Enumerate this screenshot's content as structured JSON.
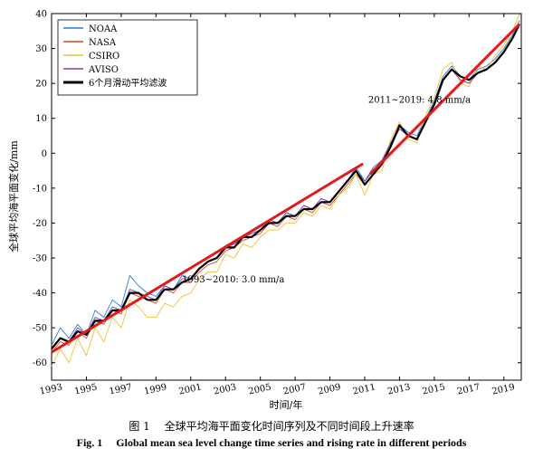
{
  "chart_data": {
    "type": "line",
    "title": "",
    "xlabel": "时间/年",
    "ylabel": "全球平均海平面变化/mm",
    "xlim": [
      1993,
      2020
    ],
    "ylim": [
      -65,
      40
    ],
    "x_ticks": [
      "1993",
      "1995",
      "1997",
      "1999",
      "2001",
      "2003",
      "2005",
      "2007",
      "2009",
      "2011",
      "2013",
      "2015",
      "2017",
      "2019"
    ],
    "y_ticks": [
      "-60",
      "-50",
      "-40",
      "-30",
      "-20",
      "-10",
      "0",
      "10",
      "20",
      "30",
      "40"
    ],
    "legend_position": "top-left",
    "grid": false,
    "series": [
      {
        "name": "NOAA",
        "color": "#2e7bd6",
        "x": [
          1993.0,
          1993.5,
          1994.0,
          1994.5,
          1995.0,
          1995.5,
          1996.0,
          1996.5,
          1997.0,
          1997.5,
          1998.0,
          1998.5,
          1999.0,
          1999.5,
          2000.0,
          2000.5,
          2001.0,
          2001.5,
          2002.0,
          2002.5,
          2003.0,
          2003.5,
          2004.0,
          2004.5,
          2005.0,
          2005.5,
          2006.0,
          2006.5,
          2007.0,
          2007.5,
          2008.0,
          2008.5,
          2009.0,
          2009.5,
          2010.0,
          2010.5,
          2011.0,
          2011.5,
          2012.0,
          2012.5,
          2013.0,
          2013.5,
          2014.0,
          2014.5,
          2015.0,
          2015.5,
          2016.0,
          2016.5,
          2017.0,
          2017.5,
          2018.0,
          2018.5,
          2019.0,
          2019.5,
          2019.9
        ],
        "y": [
          -55,
          -50,
          -53,
          -49,
          -52,
          -45,
          -47,
          -42,
          -44,
          -35,
          -38,
          -40,
          -41,
          -38,
          -39,
          -35,
          -36,
          -33,
          -31,
          -30,
          -27,
          -26,
          -24,
          -23,
          -22,
          -19,
          -20,
          -17,
          -18,
          -15,
          -16,
          -13,
          -14,
          -11,
          -8,
          -4,
          -8,
          -4,
          -2,
          3,
          8,
          6,
          5,
          10,
          15,
          22,
          25,
          22,
          21,
          24,
          25,
          27,
          30,
          34,
          38
        ]
      },
      {
        "name": "NASA",
        "color": "#d9432b",
        "x": [
          1993.0,
          1993.5,
          1994.0,
          1994.5,
          1995.0,
          1995.5,
          1996.0,
          1996.5,
          1997.0,
          1997.5,
          1998.0,
          1998.5,
          1999.0,
          1999.5,
          2000.0,
          2000.5,
          2001.0,
          2001.5,
          2002.0,
          2002.5,
          2003.0,
          2003.5,
          2004.0,
          2004.5,
          2005.0,
          2005.5,
          2006.0,
          2006.5,
          2007.0,
          2007.5,
          2008.0,
          2008.5,
          2009.0,
          2009.5,
          2010.0,
          2010.5,
          2011.0,
          2011.5,
          2012.0,
          2012.5,
          2013.0,
          2013.5,
          2014.0,
          2014.5,
          2015.0,
          2015.5,
          2016.0,
          2016.5,
          2017.0,
          2017.5,
          2018.0,
          2018.5,
          2019.0,
          2019.5,
          2019.9
        ],
        "y": [
          -57,
          -54,
          -55,
          -51,
          -53,
          -48,
          -49,
          -45,
          -46,
          -40,
          -41,
          -42,
          -43,
          -39,
          -40,
          -37,
          -37,
          -34,
          -32,
          -31,
          -28,
          -27,
          -25,
          -24,
          -23,
          -20,
          -21,
          -18,
          -19,
          -16,
          -17,
          -14,
          -15,
          -12,
          -9,
          -6,
          -9,
          -6,
          -3,
          2,
          7,
          5,
          4,
          9,
          14,
          21,
          24,
          21,
          20,
          23,
          24,
          26,
          29,
          33,
          37
        ]
      },
      {
        "name": "CSIRO",
        "color": "#f2c230",
        "x": [
          1993.0,
          1993.5,
          1994.0,
          1994.5,
          1995.0,
          1995.5,
          1996.0,
          1996.5,
          1997.0,
          1997.5,
          1998.0,
          1998.5,
          1999.0,
          1999.5,
          2000.0,
          2000.5,
          2001.0,
          2001.5,
          2002.0,
          2002.5,
          2003.0,
          2003.5,
          2004.0,
          2004.5,
          2005.0,
          2005.5,
          2006.0,
          2006.5,
          2007.0,
          2007.5,
          2008.0,
          2008.5,
          2009.0,
          2009.5,
          2010.0,
          2010.5,
          2011.0,
          2011.5,
          2012.0,
          2012.5,
          2013.0,
          2013.5,
          2014.0,
          2014.5,
          2015.0,
          2015.5,
          2016.0,
          2016.5,
          2017.0,
          2017.5,
          2018.0,
          2018.5,
          2019.0,
          2019.5,
          2019.9
        ],
        "y": [
          -61,
          -56,
          -60,
          -53,
          -58,
          -50,
          -54,
          -47,
          -50,
          -42,
          -44,
          -47,
          -47,
          -43,
          -44,
          -41,
          -40,
          -36,
          -34,
          -34,
          -29,
          -30,
          -26,
          -27,
          -24,
          -22,
          -22,
          -20,
          -20,
          -17,
          -18,
          -15,
          -16,
          -12,
          -10,
          -6,
          -12,
          -6,
          -5,
          4,
          9,
          4,
          3,
          11,
          16,
          24,
          26,
          20,
          19,
          25,
          24,
          28,
          31,
          35,
          40
        ]
      },
      {
        "name": "AVISO",
        "color": "#7b3fa6",
        "x": [
          1993.0,
          1993.5,
          1994.0,
          1994.5,
          1995.0,
          1995.5,
          1996.0,
          1996.5,
          1997.0,
          1997.5,
          1998.0,
          1998.5,
          1999.0,
          1999.5,
          2000.0,
          2000.5,
          2001.0,
          2001.5,
          2002.0,
          2002.5,
          2003.0,
          2003.5,
          2004.0,
          2004.5,
          2005.0,
          2005.5,
          2006.0,
          2006.5,
          2007.0,
          2007.5,
          2008.0,
          2008.5,
          2009.0,
          2009.5,
          2010.0,
          2010.5,
          2011.0,
          2011.5,
          2012.0,
          2012.5,
          2013.0,
          2013.5,
          2014.0,
          2014.5,
          2015.0,
          2015.5,
          2016.0,
          2016.5,
          2017.0,
          2017.5,
          2018.0,
          2018.5,
          2019.0,
          2019.5,
          2019.9
        ],
        "y": [
          -56,
          -53,
          -54,
          -50,
          -52,
          -47,
          -48,
          -44,
          -45,
          -39,
          -40,
          -41,
          -42,
          -38,
          -39,
          -36,
          -36,
          -33,
          -31,
          -30,
          -27,
          -26,
          -24,
          -23,
          -22,
          -19,
          -20,
          -17,
          -18,
          -15,
          -16,
          -13,
          -14,
          -11,
          -8,
          -5,
          -8,
          -5,
          -2,
          3,
          7,
          5,
          4,
          9,
          14,
          21,
          24,
          21,
          20,
          23,
          24,
          26,
          29,
          33,
          37
        ]
      },
      {
        "name": "6个月滑动平均滤波",
        "color": "#000000",
        "bold": true,
        "x": [
          1993.0,
          1993.5,
          1994.0,
          1994.5,
          1995.0,
          1995.5,
          1996.0,
          1996.5,
          1997.0,
          1997.5,
          1998.0,
          1998.5,
          1999.0,
          1999.5,
          2000.0,
          2000.5,
          2001.0,
          2001.5,
          2002.0,
          2002.5,
          2003.0,
          2003.5,
          2004.0,
          2004.5,
          2005.0,
          2005.5,
          2006.0,
          2006.5,
          2007.0,
          2007.5,
          2008.0,
          2008.5,
          2009.0,
          2009.5,
          2010.0,
          2010.5,
          2011.0,
          2011.5,
          2012.0,
          2012.5,
          2013.0,
          2013.5,
          2014.0,
          2014.5,
          2015.0,
          2015.5,
          2016.0,
          2016.5,
          2017.0,
          2017.5,
          2018.0,
          2018.5,
          2019.0,
          2019.5,
          2019.9
        ],
        "y": [
          -56,
          -53,
          -54,
          -51,
          -52,
          -48,
          -48,
          -45,
          -45,
          -40,
          -40,
          -42,
          -42,
          -39,
          -39,
          -37,
          -36,
          -33,
          -31,
          -30,
          -27,
          -27,
          -24,
          -24,
          -22,
          -20,
          -20,
          -18,
          -18,
          -16,
          -16,
          -14,
          -14,
          -11,
          -8,
          -5,
          -9,
          -6,
          -3,
          2,
          8,
          5,
          4,
          9,
          14,
          21,
          24,
          22,
          21,
          23,
          24,
          26,
          29,
          33,
          37
        ]
      }
    ],
    "trend_lines": [
      {
        "color": "#e31a1c",
        "x": [
          1993,
          2010.9
        ],
        "y": [
          -57,
          -3
        ]
      },
      {
        "color": "#e31a1c",
        "x": [
          2011.3,
          2019.9
        ],
        "y": [
          -6,
          37
        ]
      }
    ],
    "annotations": [
      {
        "text": "2011~2019: 4.8 mm/a",
        "x": 2011.2,
        "y": 14.5
      },
      {
        "text": "1993~2010: 3.0 mm/a",
        "x": 2000.5,
        "y": -37
      }
    ]
  },
  "caption": {
    "cn_label": "图 1",
    "cn_text": "全球平均海平面变化时间序列及不同时间段上升速率",
    "en_label": "Fig. 1",
    "en_text": "Global mean sea level change time series and rising rate in different periods"
  }
}
